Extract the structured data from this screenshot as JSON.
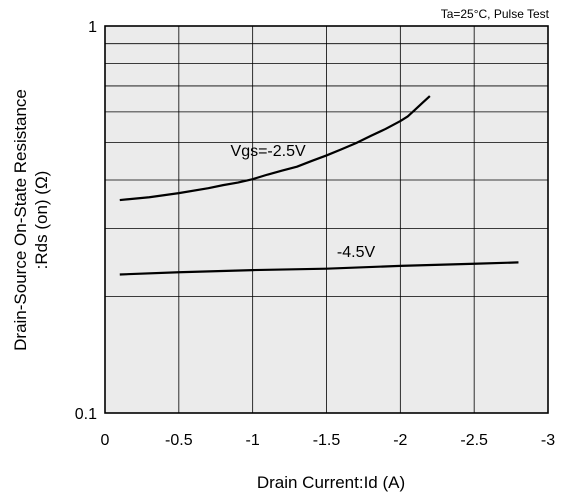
{
  "chart_data": {
    "type": "line",
    "note": "Ta=25°C, Pulse Test",
    "xlabel": "Drain Current:Id  (A)",
    "ylabel_line1": "Drain-Source On-State Resistance",
    "ylabel_line2": ":Rds (on) (Ω)",
    "xlim": [
      0,
      -3
    ],
    "ylim": [
      0.1,
      1
    ],
    "y_scale": "log",
    "grid": true,
    "x_ticks": [
      0,
      -0.5,
      -1,
      -1.5,
      -2,
      -2.5,
      -3
    ],
    "x_tick_labels": [
      "0",
      "-0.5",
      "-1",
      "-1.5",
      "-2",
      "-2.5",
      "-3"
    ],
    "y_ticks": [
      0.1,
      1
    ],
    "y_tick_labels": [
      "0.1",
      "1"
    ],
    "series": [
      {
        "label": "Vgs=-2.5V",
        "color": "#000000",
        "x": [
          -0.1,
          -0.3,
          -0.5,
          -0.7,
          -0.8,
          -0.9,
          -1.0,
          -1.1,
          -1.2,
          -1.3,
          -1.4,
          -1.5,
          -1.6,
          -1.7,
          -1.8,
          -1.9,
          -2.0,
          -2.05,
          -2.1,
          -2.15,
          -2.2
        ],
        "y": [
          0.355,
          0.361,
          0.37,
          0.381,
          0.388,
          0.394,
          0.402,
          0.413,
          0.423,
          0.433,
          0.448,
          0.463,
          0.48,
          0.498,
          0.52,
          0.542,
          0.568,
          0.584,
          0.608,
          0.633,
          0.659
        ]
      },
      {
        "label": "-4.5V",
        "color": "#000000",
        "x": [
          -0.1,
          -0.5,
          -1.0,
          -1.5,
          -2.0,
          -2.5,
          -2.8
        ],
        "y": [
          0.228,
          0.231,
          0.234,
          0.236,
          0.24,
          0.243,
          0.245
        ]
      }
    ]
  }
}
